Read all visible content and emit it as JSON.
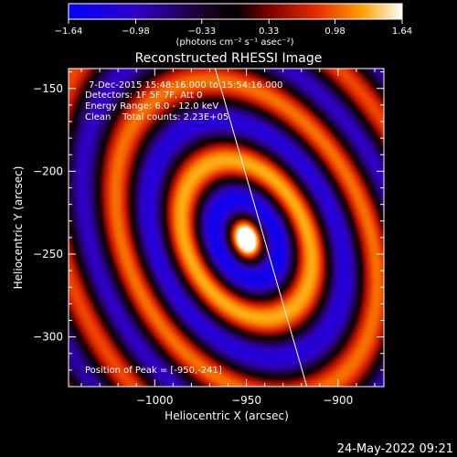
{
  "chart_data": {
    "type": "heatmap",
    "title": "Reconstructed RHESSI Image",
    "info": {
      "time_range": "7-Dec-2015 15:48:16.000 to 15:54:16.000",
      "detectors": "Detectors: 1F 5F 7F, Att 0",
      "energy": "Energy Range: 6.0 - 12.0 keV",
      "method": "Clean    Total counts: 2.23E+05"
    },
    "peak_label": "Position of Peak = [-950,-241]",
    "peak": {
      "x": -950,
      "y": -241
    },
    "xlabel": "Heliocentric X (arcsec)",
    "ylabel": "Heliocentric Y (arcsec)",
    "xlim": [
      -1047,
      -875
    ],
    "ylim": [
      -330,
      -138
    ],
    "x_ticks": [
      -1000,
      -950,
      -900
    ],
    "x_tick_labels": [
      "−1000",
      "−950",
      "−900"
    ],
    "y_ticks": [
      -150,
      -200,
      -250,
      -300
    ],
    "y_tick_labels": [
      "−150",
      "−200",
      "−250",
      "−300"
    ],
    "colorbar": {
      "min": -1.64,
      "max": 1.64,
      "ticks": [
        -1.64,
        -0.98,
        -0.33,
        0.33,
        0.98,
        1.64
      ],
      "tick_labels": [
        "−1.64",
        "−0.98",
        "−0.33",
        "0.33",
        "0.98",
        "1.64"
      ],
      "unit_label": "(photons cm⁻² s⁻¹ asec⁻²)"
    },
    "limb_line": [
      {
        "x": -967,
        "y": -138
      },
      {
        "x": -917,
        "y": -330
      }
    ],
    "colors": {
      "limb": "#ffffff",
      "axes": "#ffffff",
      "background": "#000000"
    }
  },
  "footer_timestamp": "24-May-2022 09:21"
}
